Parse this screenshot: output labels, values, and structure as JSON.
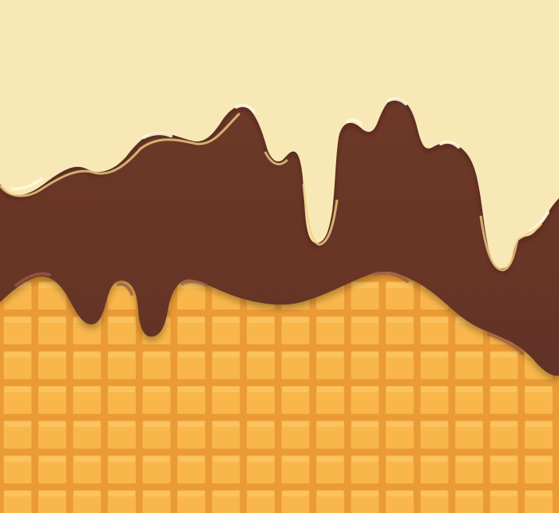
{
  "scene": {
    "description_layers": [
      "vanilla-cream",
      "chocolate",
      "waffle-cone"
    ],
    "colors": {
      "vanilla": "#f8e8b6",
      "vanilla_edge": "#f3cf83",
      "vanilla_highlight": "#fff8dc",
      "chocolate": "#6b3727",
      "chocolate_edge": "#3e1f19",
      "chocolate_highlight": "#9b5b4c",
      "waffle_cell": "#f8b64b",
      "waffle_line": "#ea9b36",
      "waffle_cell_highlight": "#fbca6a"
    }
  }
}
